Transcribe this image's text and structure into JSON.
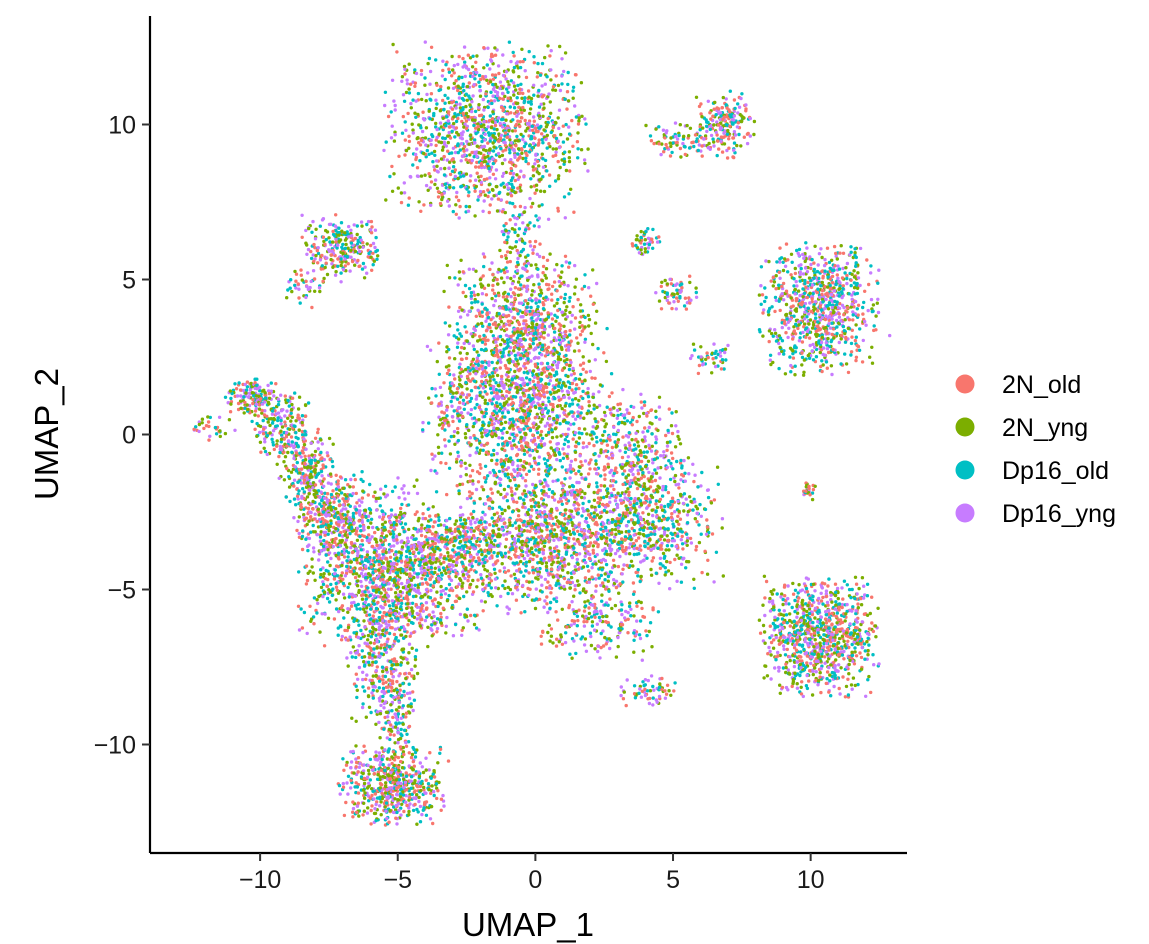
{
  "chart_data": {
    "type": "scatter",
    "title": "",
    "xlabel": "UMAP_1",
    "ylabel": "UMAP_2",
    "xlim": [
      -14,
      13.5
    ],
    "ylim": [
      -13.5,
      13.5
    ],
    "x_ticks": [
      -10,
      -5,
      0,
      5,
      10
    ],
    "y_ticks": [
      -10,
      -5,
      0,
      5,
      10
    ],
    "x_tick_labels": [
      "−10",
      "−5",
      "0",
      "5",
      "10"
    ],
    "y_tick_labels": [
      "−10",
      "−5",
      "0",
      "5",
      "10"
    ],
    "grid": false,
    "legend_position": "right",
    "series": [
      {
        "name": "2N_old",
        "color": "#F8766D"
      },
      {
        "name": "2N_yng",
        "color": "#7CAE00"
      },
      {
        "name": "Dp16_old",
        "color": "#00BFC4"
      },
      {
        "name": "Dp16_yng",
        "color": "#C77CFF"
      }
    ],
    "clusters": [
      {
        "id": "top-center",
        "cx": -1.8,
        "cy": 9.8,
        "sx": 1.7,
        "sy": 1.3,
        "n": 1300
      },
      {
        "id": "top-center-stalk",
        "cx": -0.6,
        "cy": 6.5,
        "sx": 0.5,
        "sy": 1.0,
        "n": 120
      },
      {
        "id": "center-upper",
        "cx": -0.5,
        "cy": 3.6,
        "sx": 1.3,
        "sy": 1.1,
        "n": 700
      },
      {
        "id": "center",
        "cx": -0.6,
        "cy": 0.8,
        "sx": 1.6,
        "sy": 1.3,
        "n": 1300
      },
      {
        "id": "center-lower",
        "cx": 0.4,
        "cy": -3.4,
        "sx": 1.5,
        "sy": 1.1,
        "n": 1100
      },
      {
        "id": "center-low-tail",
        "cx": 2.3,
        "cy": -6.2,
        "sx": 1.0,
        "sy": 0.5,
        "n": 180
      },
      {
        "id": "right-center",
        "cx": 4.0,
        "cy": -2.8,
        "sx": 1.3,
        "sy": 1.0,
        "n": 650
      },
      {
        "id": "right-center-upper",
        "cx": 3.6,
        "cy": -0.3,
        "sx": 0.9,
        "sy": 0.8,
        "n": 250
      },
      {
        "id": "left-main",
        "cx": -6.0,
        "cy": -4.2,
        "sx": 1.2,
        "sy": 1.3,
        "n": 950
      },
      {
        "id": "left-mid",
        "cx": -4.0,
        "cy": -4.5,
        "sx": 1.0,
        "sy": 1.0,
        "n": 500
      },
      {
        "id": "left-bridge",
        "cx": -2.6,
        "cy": -3.4,
        "sx": 0.7,
        "sy": 0.5,
        "n": 200
      },
      {
        "id": "left-down",
        "cx": -5.6,
        "cy": -7.3,
        "sx": 0.6,
        "sy": 1.0,
        "n": 300
      },
      {
        "id": "bottom",
        "cx": -5.2,
        "cy": -11.3,
        "sx": 0.9,
        "sy": 0.6,
        "n": 550
      },
      {
        "id": "bottom-stalk",
        "cx": -5.1,
        "cy": -9.2,
        "sx": 0.35,
        "sy": 0.7,
        "n": 120
      },
      {
        "id": "arm-1",
        "cx": -10.3,
        "cy": 1.2,
        "sx": 0.45,
        "sy": 0.3,
        "n": 140
      },
      {
        "id": "arm-2",
        "cx": -9.2,
        "cy": 0.3,
        "sx": 0.5,
        "sy": 0.5,
        "n": 180
      },
      {
        "id": "arm-3",
        "cx": -8.3,
        "cy": -1.1,
        "sx": 0.5,
        "sy": 0.6,
        "n": 220
      },
      {
        "id": "arm-4",
        "cx": -7.5,
        "cy": -2.5,
        "sx": 0.6,
        "sy": 0.6,
        "n": 240
      },
      {
        "id": "far-left-fragment",
        "cx": -11.7,
        "cy": 0.2,
        "sx": 0.4,
        "sy": 0.2,
        "n": 30
      },
      {
        "id": "upper-left-blob",
        "cx": -7.0,
        "cy": 6.0,
        "sx": 0.7,
        "sy": 0.5,
        "n": 260
      },
      {
        "id": "upper-left-small",
        "cx": -8.4,
        "cy": 4.7,
        "sx": 0.3,
        "sy": 0.3,
        "n": 40
      },
      {
        "id": "upper-right-blob",
        "cx": 6.9,
        "cy": 10.0,
        "sx": 0.5,
        "sy": 0.5,
        "n": 200
      },
      {
        "id": "upper-right-arm",
        "cx": 5.2,
        "cy": 9.5,
        "sx": 0.6,
        "sy": 0.25,
        "n": 80
      },
      {
        "id": "small-a",
        "cx": 4.0,
        "cy": 6.2,
        "sx": 0.25,
        "sy": 0.25,
        "n": 45
      },
      {
        "id": "small-b",
        "cx": 5.1,
        "cy": 4.6,
        "sx": 0.35,
        "sy": 0.3,
        "n": 60
      },
      {
        "id": "small-c",
        "cx": 6.4,
        "cy": 2.5,
        "sx": 0.35,
        "sy": 0.25,
        "n": 45
      },
      {
        "id": "right-upper-blob",
        "cx": 10.3,
        "cy": 4.1,
        "sx": 1.0,
        "sy": 1.0,
        "n": 800
      },
      {
        "id": "right-small-blob",
        "cx": 9.9,
        "cy": -1.8,
        "sx": 0.15,
        "sy": 0.15,
        "n": 25
      },
      {
        "id": "right-lower-blob",
        "cx": 10.3,
        "cy": -6.5,
        "sx": 1.0,
        "sy": 0.9,
        "n": 900
      },
      {
        "id": "lower-small",
        "cx": 4.2,
        "cy": -8.3,
        "sx": 0.5,
        "sy": 0.25,
        "n": 60
      }
    ]
  }
}
